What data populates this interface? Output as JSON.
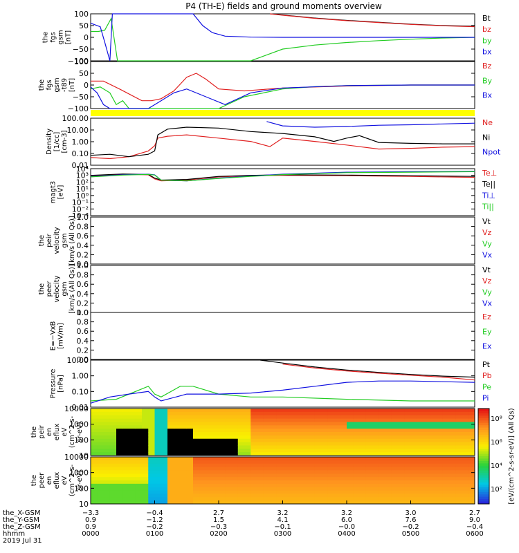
{
  "title": "P4 (TH-E) fields and ground moments overview",
  "colors": {
    "black": "#000000",
    "red": "#e02020",
    "green": "#22cc22",
    "blue": "#1010e0",
    "yellow": "#ffff00"
  },
  "panels": [
    {
      "id": "fgs_gsm",
      "ylabel_lines": [
        "the",
        "fgs",
        "gsm",
        "[nT]"
      ],
      "yticks": [
        "100",
        "50",
        "0",
        "−50",
        "−100"
      ],
      "legend": [
        {
          "label": "Bt",
          "color": "black"
        },
        {
          "label": "bz",
          "color": "red"
        },
        {
          "label": "by",
          "color": "green"
        },
        {
          "label": "bx",
          "color": "blue"
        }
      ]
    },
    {
      "id": "fgs_gsm_dif",
      "ylabel_lines": [
        "the",
        "fgs",
        "gsm",
        "-t89",
        "[nT]"
      ],
      "yticks": [
        "100",
        "50",
        "0",
        "−50",
        "−100"
      ],
      "legend": [
        {
          "label": "Bz",
          "color": "red"
        },
        {
          "label": "By",
          "color": "green"
        },
        {
          "label": "Bx",
          "color": "blue"
        }
      ]
    },
    {
      "id": "density",
      "ylabel_lines": [
        "Density",
        "[1/cc]",
        "[cm-3]"
      ],
      "yticks": [
        "100.00",
        "10.00",
        "1.00",
        "0.10",
        "0.01"
      ],
      "legend": [
        {
          "label": "Ne",
          "color": "red"
        },
        {
          "label": "Ni",
          "color": "black"
        },
        {
          "label": "Npot",
          "color": "blue"
        }
      ]
    },
    {
      "id": "temperature",
      "ylabel_lines": [
        "magt3",
        "[eV]"
      ],
      "yticks": [
        "10⁴",
        "10³",
        "10²",
        "10¹",
        "10⁰",
        "10⁻¹",
        "10⁻²",
        "10⁻³"
      ],
      "legend": [
        {
          "label": "Te⊥",
          "color": "red"
        },
        {
          "label": "Te||",
          "color": "black"
        },
        {
          "label": "Ti⊥",
          "color": "blue"
        },
        {
          "label": "Ti||",
          "color": "green"
        }
      ]
    },
    {
      "id": "peir_velocity",
      "ylabel_lines": [
        "the",
        "peir",
        "velocity",
        "gsm",
        "[km/s (All Qs)]"
      ],
      "yticks": [
        "1.0",
        "0.8",
        "0.6",
        "0.4",
        "0.2",
        "0.0"
      ],
      "legend": [
        {
          "label": "Vt",
          "color": "black"
        },
        {
          "label": "Vz",
          "color": "red"
        },
        {
          "label": "Vy",
          "color": "green"
        },
        {
          "label": "Vx",
          "color": "blue"
        }
      ]
    },
    {
      "id": "peer_velocity",
      "ylabel_lines": [
        "the",
        "peer",
        "velocity",
        "gsm",
        "[km/s (All Qs)]"
      ],
      "yticks": [
        "1.0",
        "0.8",
        "0.6",
        "0.4",
        "0.2",
        "0.0"
      ],
      "legend": [
        {
          "label": "Vt",
          "color": "black"
        },
        {
          "label": "Vz",
          "color": "red"
        },
        {
          "label": "Vy",
          "color": "green"
        },
        {
          "label": "Vx",
          "color": "blue"
        }
      ]
    },
    {
      "id": "e_field",
      "ylabel_lines": [
        "E=−VxB",
        "[mV/m]"
      ],
      "yticks": [
        "1.0",
        "0.8",
        "0.6",
        "0.4",
        "0.2",
        "0.0"
      ],
      "legend": [
        {
          "label": "Ez",
          "color": "red"
        },
        {
          "label": "Ey",
          "color": "green"
        },
        {
          "label": "Ex",
          "color": "blue"
        }
      ]
    },
    {
      "id": "pressure",
      "ylabel_lines": [
        "Pressure",
        "[nPa]"
      ],
      "yticks": [
        "10.00",
        "1.00",
        "0.10",
        "0.01"
      ],
      "legend": [
        {
          "label": "Pt",
          "color": "black"
        },
        {
          "label": "Pb",
          "color": "red"
        },
        {
          "label": "Pe",
          "color": "green"
        },
        {
          "label": "Pi",
          "color": "blue"
        }
      ]
    },
    {
      "id": "peir_eflux",
      "ylabel_lines": [
        "the",
        "peir",
        "en",
        "eflux",
        "eV",
        "(cm^2-s-",
        "sr-eV)"
      ],
      "yticks": [
        "10000",
        "1000",
        "100",
        "10"
      ]
    },
    {
      "id": "peer_eflux",
      "ylabel_lines": [
        "the",
        "peer",
        "en",
        "eflux",
        "eV",
        "(cm^2-s-",
        "sr-eV)"
      ],
      "yticks": [
        "10000",
        "1000",
        "100",
        "10"
      ]
    }
  ],
  "colorbar": {
    "label": "[eV/(cm^2-s-sr-eV)] (All Qs)",
    "ticks": [
      "10⁸",
      "10⁶",
      "10⁴",
      "10²"
    ]
  },
  "xaxis": {
    "rows": [
      {
        "label": "the_X-GSM",
        "values": [
          "−3.3",
          "−0.4",
          "2.7",
          "3.2",
          "3.2",
          "3.0",
          "2.7"
        ]
      },
      {
        "label": "the_Y-GSM",
        "values": [
          "0.9",
          "−1.2",
          "1.5",
          "4.1",
          "6.0",
          "7.6",
          "9.0"
        ]
      },
      {
        "label": "the_Z-GSM",
        "values": [
          "0.9",
          "−0.2",
          "−0.3",
          "−0.1",
          "−0.0",
          "−0.2",
          "−0.4"
        ]
      },
      {
        "label": "hhmm",
        "values": [
          "0000",
          "0100",
          "0200",
          "0300",
          "0400",
          "0500",
          "0600"
        ]
      }
    ],
    "date": "2019 Jul 31"
  },
  "chart_data": [
    {
      "type": "line",
      "panel": "fgs_gsm",
      "x_unit": "hours since 2019 Jul 31 00:00 UT",
      "ylim": [
        -100,
        100
      ],
      "series": [
        {
          "name": "Bt",
          "color": "black",
          "x": [
            2.8,
            3.0,
            3.5,
            4.0,
            4.5,
            5.0,
            5.5,
            6.0
          ],
          "y": [
            100,
            95,
            82,
            72,
            64,
            56,
            50,
            47
          ]
        },
        {
          "name": "bz",
          "color": "red",
          "x": [
            2.8,
            3.0,
            3.5,
            4.0,
            4.5,
            5.0,
            5.5,
            6.0
          ],
          "y": [
            100,
            94,
            81,
            71,
            63,
            55,
            49,
            45
          ]
        },
        {
          "name": "by",
          "color": "green",
          "x": [
            0.0,
            0.12,
            0.22,
            0.32,
            0.42,
            0.5,
            2.5,
            3.0,
            3.5,
            4.0,
            4.5,
            5.0,
            5.5,
            6.0
          ],
          "y": [
            25,
            25,
            30,
            80,
            -100,
            -100,
            -100,
            -50,
            -33,
            -22,
            -14,
            -8,
            -3,
            0
          ]
        },
        {
          "name": "bx",
          "color": "blue",
          "x": [
            0.0,
            0.15,
            0.22,
            0.3,
            0.34,
            1.6,
            1.75,
            1.9,
            2.1,
            2.5,
            3.0,
            4.0,
            5.0,
            6.0
          ],
          "y": [
            60,
            45,
            -20,
            -100,
            100,
            100,
            50,
            20,
            5,
            1,
            0,
            0,
            0,
            0
          ]
        }
      ]
    },
    {
      "type": "line",
      "panel": "fgs_gsm_dif",
      "x_unit": "hours since 2019 Jul 31 00:00 UT",
      "ylim": [
        -120,
        120
      ],
      "series": [
        {
          "name": "Bz",
          "color": "red",
          "x": [
            0.0,
            0.2,
            0.45,
            0.8,
            0.95,
            1.1,
            1.3,
            1.5,
            1.65,
            1.8,
            2.0,
            2.4,
            3.0,
            4.0,
            5.0,
            6.0
          ],
          "y": [
            20,
            20,
            -20,
            -80,
            -80,
            -70,
            -30,
            40,
            60,
            30,
            -20,
            -30,
            -15,
            -5,
            0,
            0
          ]
        },
        {
          "name": "By",
          "color": "green",
          "x": [
            0.0,
            0.15,
            0.3,
            0.4,
            0.5,
            0.6,
            1.5,
            2.0,
            2.4,
            3.0,
            3.5,
            4.0,
            5.0,
            6.0
          ],
          "y": [
            -20,
            -10,
            -40,
            -100,
            -80,
            -120,
            -120,
            -120,
            -60,
            -20,
            -8,
            -3,
            0,
            0
          ]
        },
        {
          "name": "Bx",
          "color": "blue",
          "x": [
            0.0,
            0.1,
            0.2,
            0.3,
            0.9,
            1.1,
            1.3,
            1.5,
            1.8,
            2.1,
            2.5,
            3.0,
            4.0,
            5.0,
            6.0
          ],
          "y": [
            -10,
            -40,
            -100,
            -120,
            -120,
            -80,
            -40,
            -20,
            -60,
            -100,
            -40,
            -15,
            -3,
            0,
            0
          ]
        }
      ]
    },
    {
      "type": "line",
      "panel": "density",
      "x_unit": "hours since 2019 Jul 31 00:00 UT",
      "ylog": true,
      "ylim": [
        0.01,
        200
      ],
      "series": [
        {
          "name": "Ne",
          "color": "red",
          "x": [
            0.0,
            0.3,
            0.6,
            0.9,
            1.0,
            1.05,
            1.2,
            1.5,
            2.0,
            2.5,
            2.8,
            3.0,
            3.5,
            4.0,
            4.5,
            5.0,
            5.5,
            6.0
          ],
          "y": [
            0.05,
            0.04,
            0.06,
            0.2,
            0.6,
            3.0,
            4.5,
            6.0,
            3.0,
            1.5,
            0.5,
            3.0,
            1.5,
            0.7,
            0.3,
            0.35,
            0.45,
            0.5
          ]
        },
        {
          "name": "Ni",
          "color": "black",
          "x": [
            0.0,
            0.3,
            0.6,
            0.9,
            1.0,
            1.05,
            1.2,
            1.5,
            2.0,
            2.5,
            3.0,
            3.5,
            3.8,
            4.0,
            4.2,
            4.5,
            5.0,
            5.5,
            6.0
          ],
          "y": [
            0.08,
            0.1,
            0.06,
            0.1,
            0.2,
            6.0,
            20,
            30,
            25,
            12,
            8,
            4,
            1.5,
            3,
            5,
            1.2,
            1.0,
            0.9,
            0.9
          ]
        },
        {
          "name": "Npot",
          "color": "blue",
          "x": [
            2.75,
            3.0,
            3.5,
            4.0,
            4.5,
            5.0,
            5.5,
            6.0
          ],
          "y": [
            100,
            40,
            30,
            35,
            45,
            50,
            60,
            70
          ]
        }
      ]
    },
    {
      "type": "line",
      "panel": "temperature",
      "x_unit": "hours since 2019 Jul 31 00:00 UT",
      "ylog": true,
      "ylim": [
        0.001,
        10000
      ],
      "series": [
        {
          "name": "Te⊥",
          "color": "red",
          "x": [
            0.0,
            0.5,
            0.9,
            1.0,
            1.1,
            1.5,
            2.0,
            2.5,
            3.0,
            4.0,
            5.0,
            6.0
          ],
          "y": [
            900,
            1500,
            1200,
            300,
            150,
            200,
            600,
            900,
            1000,
            900,
            700,
            500
          ]
        },
        {
          "name": "Te||",
          "color": "black",
          "x": [
            0.0,
            0.5,
            0.9,
            1.0,
            1.1,
            1.5,
            2.0,
            2.5,
            3.0,
            4.0,
            5.0,
            6.0
          ],
          "y": [
            1000,
            1600,
            1400,
            400,
            200,
            250,
            700,
            1000,
            1200,
            1100,
            900,
            700
          ]
        },
        {
          "name": "Ti⊥",
          "color": "blue",
          "x": [
            0.0,
            0.5,
            0.9,
            1.0,
            1.1,
            1.5,
            2.0,
            2.5,
            3.0,
            4.0,
            5.0,
            6.0
          ],
          "y": [
            700,
            1200,
            1500,
            1200,
            200,
            150,
            400,
            800,
            1500,
            3000,
            3500,
            4000
          ]
        },
        {
          "name": "Ti||",
          "color": "green",
          "x": [
            0.0,
            0.5,
            0.9,
            1.0,
            1.1,
            1.5,
            2.0,
            2.5,
            3.0,
            4.0,
            5.0,
            6.0
          ],
          "y": [
            600,
            1100,
            1400,
            1100,
            200,
            150,
            350,
            700,
            1300,
            2500,
            3000,
            3500
          ]
        }
      ]
    },
    {
      "type": "line",
      "panel": "peir_velocity",
      "ylim": [
        0.0,
        1.0
      ],
      "series": []
    },
    {
      "type": "line",
      "panel": "peer_velocity",
      "ylim": [
        0.0,
        1.0
      ],
      "series": []
    },
    {
      "type": "line",
      "panel": "e_field",
      "ylim": [
        0.0,
        1.0
      ],
      "series": []
    },
    {
      "type": "line",
      "panel": "pressure",
      "x_unit": "hours since 2019 Jul 31 00:00 UT",
      "ylog": true,
      "ylim": [
        0.005,
        20
      ],
      "series": [
        {
          "name": "Pt",
          "color": "black",
          "x": [
            2.65,
            3.0,
            3.5,
            4.0,
            4.5,
            5.0,
            5.5,
            6.0
          ],
          "y": [
            20,
            12,
            6,
            3.5,
            2.3,
            1.6,
            1.2,
            1.0
          ]
        },
        {
          "name": "Pb",
          "color": "red",
          "x": [
            3.0,
            3.5,
            4.0,
            4.5,
            5.0,
            5.5,
            6.0
          ],
          "y": [
            10,
            5,
            3,
            2,
            1.4,
            1.0,
            0.6
          ]
        },
        {
          "name": "Pe",
          "color": "green",
          "x": [
            0.0,
            0.4,
            0.9,
            1.0,
            1.1,
            1.4,
            1.6,
            2.0,
            2.5,
            3.0,
            4.0,
            5.0,
            6.0
          ],
          "y": [
            0.015,
            0.02,
            0.2,
            0.05,
            0.03,
            0.2,
            0.2,
            0.05,
            0.03,
            0.03,
            0.02,
            0.015,
            0.015
          ]
        },
        {
          "name": "Pi",
          "color": "blue",
          "x": [
            0.0,
            0.3,
            0.6,
            0.9,
            1.0,
            1.1,
            1.5,
            2.0,
            2.5,
            3.0,
            3.5,
            4.0,
            4.5,
            5.0,
            6.0
          ],
          "y": [
            0.01,
            0.03,
            0.05,
            0.08,
            0.03,
            0.015,
            0.05,
            0.05,
            0.06,
            0.1,
            0.2,
            0.4,
            0.5,
            0.5,
            0.4
          ]
        }
      ]
    },
    {
      "type": "heatmap",
      "panel": "peir_eflux",
      "y_label": "energy [eV]",
      "ylim": [
        5,
        25000
      ],
      "ylog": true,
      "colorbar_range": [
        10,
        100000000
      ],
      "x_bins": [
        "0000",
        "0100",
        "0200",
        "0300",
        "0400",
        "0500",
        "0600"
      ],
      "summary": "green/yellow ion flux before ~0050 with black (no-count) gap at low energy 0030-0130, red/orange increasing through 0200-0600 above 1000 eV"
    },
    {
      "type": "heatmap",
      "panel": "peer_eflux",
      "y_label": "energy [eV]",
      "ylim": [
        5,
        25000
      ],
      "ylog": true,
      "colorbar_range": [
        10,
        100000000
      ],
      "x_bins": [
        "0000",
        "0100",
        "0200",
        "0300",
        "0400",
        "0500",
        "0600"
      ],
      "summary": "orange/red electron flux throughout, cyan/blue low-flux band near 0100, green at low energy before 0100"
    }
  ]
}
